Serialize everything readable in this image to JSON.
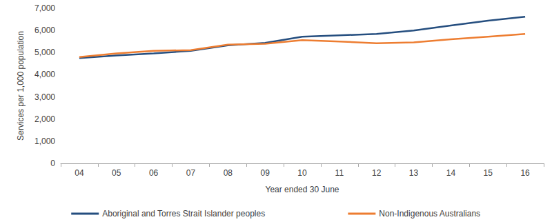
{
  "chart_data": {
    "type": "line",
    "x_label": "Year ended 30 June",
    "y_label": "Services per 1,000 population",
    "categories": [
      "04",
      "05",
      "06",
      "07",
      "08",
      "09",
      "10",
      "11",
      "12",
      "13",
      "14",
      "15",
      "16"
    ],
    "series": [
      {
        "name": "Aboriginal and Torres Strait Islander peoples",
        "color": "#254e7f",
        "values": [
          4750,
          4870,
          4960,
          5080,
          5330,
          5440,
          5720,
          5780,
          5840,
          6000,
          6220,
          6440,
          6620
        ]
      },
      {
        "name": "Non-Indigenous Australians",
        "color": "#ed7d31",
        "values": [
          4800,
          4960,
          5080,
          5110,
          5360,
          5400,
          5560,
          5500,
          5420,
          5460,
          5600,
          5720,
          5840
        ]
      }
    ],
    "ylim": [
      0,
      7000
    ],
    "yticks": [
      0,
      {
        "value": 1000,
        "label": "1,000"
      },
      {
        "value": 2000,
        "label": "2,000"
      },
      {
        "value": 3000,
        "label": "3,000"
      },
      {
        "value": 4000,
        "label": "4,000"
      },
      {
        "value": 5000,
        "label": "5,000"
      },
      {
        "value": 6000,
        "label": "6,000"
      },
      {
        "value": 7000,
        "label": "7,000"
      }
    ],
    "grid": false,
    "legend": "bottom"
  }
}
